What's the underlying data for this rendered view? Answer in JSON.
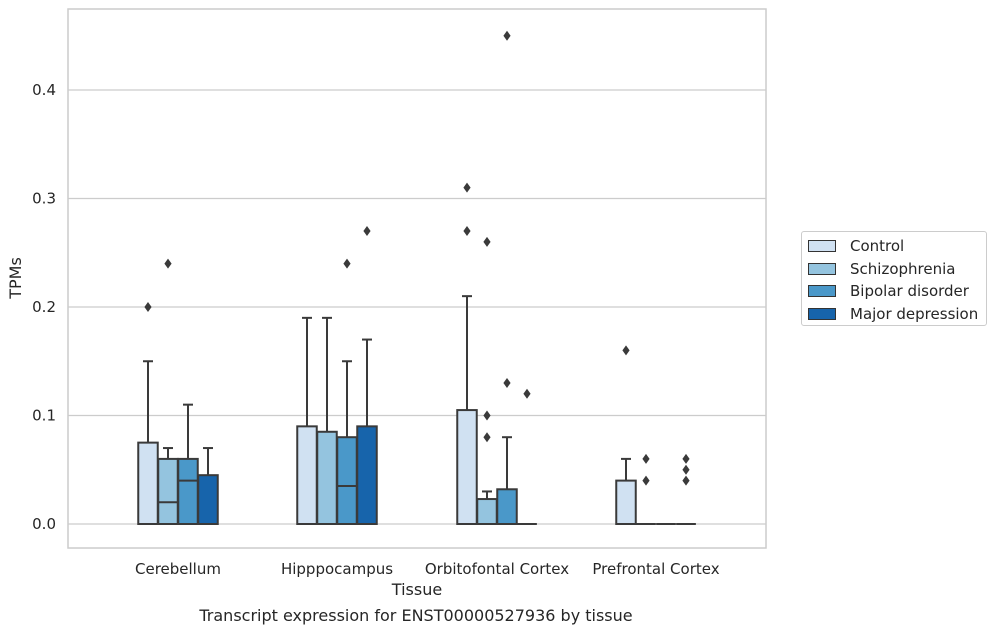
{
  "caption": "Transcript expression for ENST00000527936 by tissue",
  "chart_data": {
    "type": "box",
    "title": "",
    "xlabel": "Tissue",
    "ylabel": "TPMs",
    "ylim": [
      -0.022,
      0.473
    ],
    "yticks": [
      "0.0",
      "0.1",
      "0.2",
      "0.3",
      "0.4"
    ],
    "grid": true,
    "legend_position": "right",
    "categories": [
      "Cerebellum",
      "Hipppocampus",
      "Orbitofontal Cortex",
      "Prefrontal Cortex"
    ],
    "series": [
      {
        "name": "Control",
        "color": "#d0e1f2",
        "boxes": [
          {
            "q1": 0,
            "median": 0,
            "q3": 0.075,
            "whisker_low": 0,
            "whisker_high": 0.15,
            "outliers": [
              0.2
            ]
          },
          {
            "q1": 0,
            "median": 0,
            "q3": 0.09,
            "whisker_low": 0,
            "whisker_high": 0.19,
            "outliers": []
          },
          {
            "q1": 0,
            "median": 0,
            "q3": 0.105,
            "whisker_low": 0,
            "whisker_high": 0.21,
            "outliers": [
              0.27,
              0.31
            ]
          },
          {
            "q1": 0,
            "median": 0,
            "q3": 0.04,
            "whisker_low": 0,
            "whisker_high": 0.06,
            "outliers": [
              0.16
            ]
          }
        ]
      },
      {
        "name": "Schizophrenia",
        "color": "#94c4df",
        "boxes": [
          {
            "q1": 0,
            "median": 0.02,
            "q3": 0.06,
            "whisker_low": 0,
            "whisker_high": 0.07,
            "outliers": [
              0.24
            ]
          },
          {
            "q1": 0,
            "median": 0,
            "q3": 0.085,
            "whisker_low": 0,
            "whisker_high": 0.19,
            "outliers": []
          },
          {
            "q1": 0,
            "median": 0,
            "q3": 0.023,
            "whisker_low": 0,
            "whisker_high": 0.03,
            "outliers": [
              0.08,
              0.1,
              0.26
            ]
          },
          {
            "q1": 0,
            "median": 0,
            "q3": 0,
            "whisker_low": 0,
            "whisker_high": 0,
            "outliers": [
              0.04,
              0.06
            ]
          }
        ]
      },
      {
        "name": "Bipolar disorder",
        "color": "#4a98c9",
        "boxes": [
          {
            "q1": 0,
            "median": 0.04,
            "q3": 0.06,
            "whisker_low": 0,
            "whisker_high": 0.11,
            "outliers": []
          },
          {
            "q1": 0,
            "median": 0.035,
            "q3": 0.08,
            "whisker_low": 0,
            "whisker_high": 0.15,
            "outliers": [
              0.24
            ]
          },
          {
            "q1": 0,
            "median": 0,
            "q3": 0.032,
            "whisker_low": 0,
            "whisker_high": 0.08,
            "outliers": [
              0.13,
              0.45
            ]
          },
          {
            "q1": 0,
            "median": 0,
            "q3": 0,
            "whisker_low": 0,
            "whisker_high": 0,
            "outliers": []
          }
        ]
      },
      {
        "name": "Major depression",
        "color": "#1764ab",
        "boxes": [
          {
            "q1": 0,
            "median": 0,
            "q3": 0.045,
            "whisker_low": 0,
            "whisker_high": 0.07,
            "outliers": []
          },
          {
            "q1": 0,
            "median": 0,
            "q3": 0.09,
            "whisker_low": 0,
            "whisker_high": 0.17,
            "outliers": [
              0.27
            ]
          },
          {
            "q1": 0,
            "median": 0,
            "q3": 0,
            "whisker_low": 0,
            "whisker_high": 0,
            "outliers": [
              0.12
            ]
          },
          {
            "q1": 0,
            "median": 0,
            "q3": 0,
            "whisker_low": 0,
            "whisker_high": 0,
            "outliers": [
              0.04,
              0.05,
              0.06
            ]
          }
        ]
      }
    ]
  }
}
